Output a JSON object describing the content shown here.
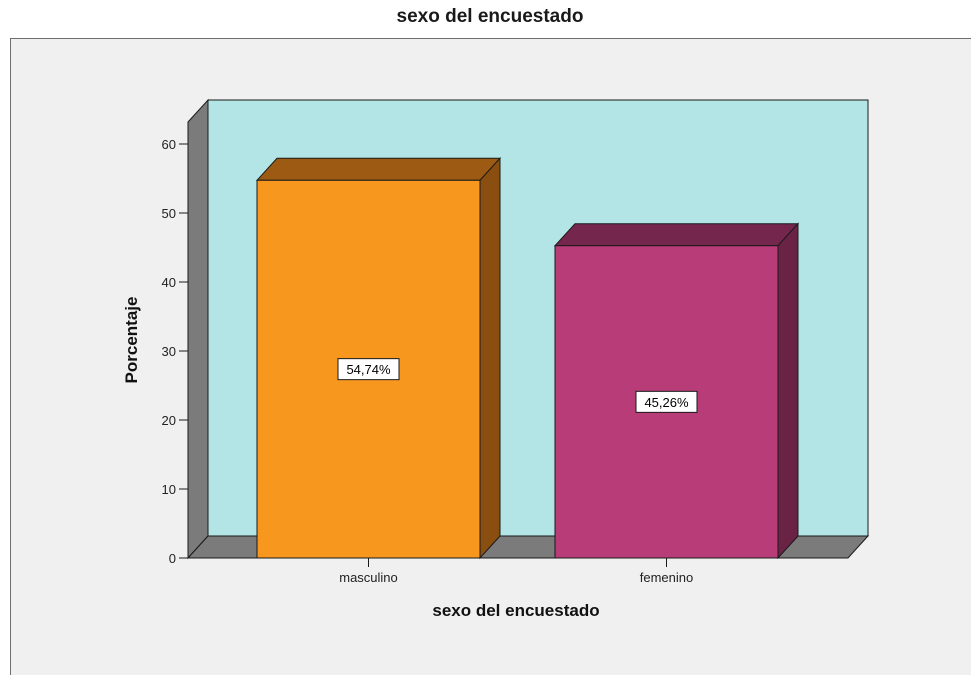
{
  "chart_data": {
    "type": "bar",
    "title": "sexo del encuestado",
    "xlabel": "sexo del encuestado",
    "ylabel": "Porcentaje",
    "categories": [
      "masculino",
      "femenino"
    ],
    "values": [
      54.74,
      45.26
    ],
    "data_labels": [
      "54,74%",
      "45,26%"
    ],
    "ylim": [
      0,
      60
    ],
    "yticks": [
      0,
      10,
      20,
      30,
      40,
      50,
      60
    ],
    "grid": false,
    "legend": "none",
    "style": "3d",
    "colors": {
      "bars": [
        "#f7971e",
        "#b83c77"
      ],
      "bar_tops": [
        "#9c5a12",
        "#74264c"
      ],
      "bar_sides": [
        "#8a4f10",
        "#6a2245"
      ],
      "wall": "#b3e5e6",
      "side_wall": "#7b7b7b",
      "floor": "#7b7b7b",
      "frame_bg": "#f0f0f0"
    }
  }
}
